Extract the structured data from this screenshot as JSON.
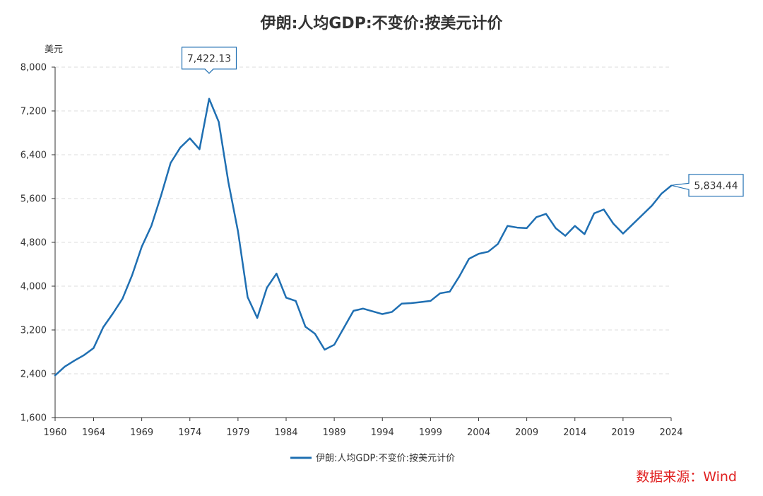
{
  "chart_data": {
    "type": "line",
    "title": "伊朗:人均GDP:不变价:按美元计价",
    "ylabel": "美元",
    "xlabel": "",
    "ylim": [
      1600,
      8000
    ],
    "y_ticks": [
      1600,
      2400,
      3200,
      4000,
      4800,
      5600,
      6400,
      7200,
      8000
    ],
    "y_tick_labels": [
      "1,600",
      "2,400",
      "3,200",
      "4,000",
      "4,800",
      "5,600",
      "6,400",
      "7,200",
      "8,000"
    ],
    "xlim": [
      1960,
      2024
    ],
    "x_ticks": [
      1960,
      1964,
      1969,
      1974,
      1979,
      1984,
      1989,
      1994,
      1999,
      2004,
      2009,
      2014,
      2019,
      2024
    ],
    "x_tick_labels": [
      "1960",
      "1964",
      "1969",
      "1974",
      "1979",
      "1984",
      "1989",
      "1994",
      "1999",
      "2004",
      "2009",
      "2014",
      "2019",
      "2024"
    ],
    "grid": true,
    "legend_position": "bottom-center",
    "series": [
      {
        "name": "伊朗:人均GDP:不变价:按美元计价",
        "color": "#1f6fb2",
        "x": [
          1960,
          1961,
          1962,
          1963,
          1964,
          1965,
          1966,
          1967,
          1968,
          1969,
          1970,
          1971,
          1972,
          1973,
          1974,
          1975,
          1976,
          1977,
          1978,
          1979,
          1980,
          1981,
          1982,
          1983,
          1984,
          1985,
          1986,
          1987,
          1988,
          1989,
          1990,
          1991,
          1992,
          1993,
          1994,
          1995,
          1996,
          1997,
          1998,
          1999,
          2000,
          2001,
          2002,
          2003,
          2004,
          2005,
          2006,
          2007,
          2008,
          2009,
          2010,
          2011,
          2012,
          2013,
          2014,
          2015,
          2016,
          2017,
          2018,
          2019,
          2020,
          2021,
          2022,
          2023,
          2024
        ],
        "values": [
          2370,
          2530,
          2640,
          2740,
          2870,
          3250,
          3500,
          3770,
          4200,
          4720,
          5100,
          5650,
          6250,
          6530,
          6700,
          6500,
          7422.13,
          7000,
          5900,
          5000,
          3800,
          3420,
          3970,
          4230,
          3790,
          3730,
          3260,
          3130,
          2840,
          2930,
          3240,
          3550,
          3590,
          3540,
          3490,
          3530,
          3680,
          3690,
          3710,
          3730,
          3870,
          3900,
          4180,
          4500,
          4590,
          4630,
          4770,
          5100,
          5070,
          5060,
          5260,
          5320,
          5060,
          4920,
          5100,
          4950,
          5330,
          5400,
          5140,
          4960,
          5130,
          5300,
          5470,
          5690,
          5834.44
        ]
      }
    ],
    "annotations": [
      {
        "x": 1976,
        "label": "7,422.13",
        "position": "above"
      },
      {
        "x": 2024,
        "label": "5,834.44",
        "position": "right"
      }
    ],
    "source": "数据来源：Wind"
  }
}
